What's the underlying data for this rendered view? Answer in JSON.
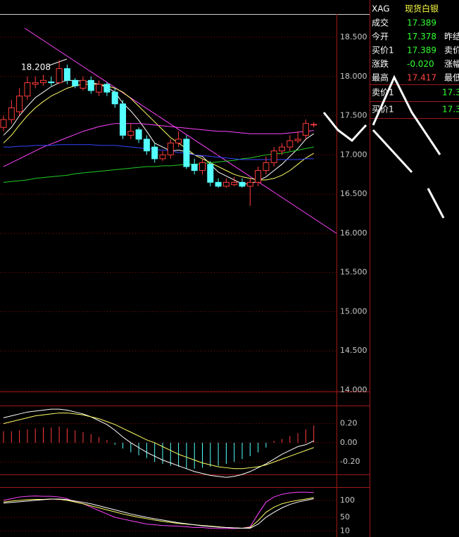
{
  "chart_data": [
    {
      "type": "candlestick",
      "annotation": "18.208",
      "categories": [
        null,
        null,
        null,
        null,
        null,
        null,
        null,
        null,
        null,
        null,
        null,
        null,
        null,
        null,
        null,
        null,
        null,
        null,
        null,
        null,
        null,
        null,
        null,
        null,
        null,
        null,
        null,
        null,
        null,
        null,
        null,
        null,
        null,
        null,
        null,
        null,
        null,
        null,
        null,
        null
      ],
      "open": [
        17.35,
        17.45,
        17.55,
        17.75,
        17.9,
        17.92,
        17.93,
        17.92,
        18.1,
        17.95,
        17.85,
        17.95,
        17.8,
        17.9,
        17.8,
        17.65,
        17.25,
        17.32,
        17.2,
        17.1,
        16.95,
        17.0,
        17.15,
        17.2,
        16.88,
        16.8,
        16.88,
        16.65,
        16.6,
        16.62,
        16.65,
        16.6,
        16.65,
        16.8,
        16.9,
        17.05,
        17.1,
        17.18,
        17.25,
        17.38
      ],
      "high": [
        17.5,
        17.7,
        17.85,
        18.0,
        18.0,
        18.02,
        18.0,
        18.208,
        18.15,
        17.98,
        18.0,
        18.0,
        17.95,
        17.93,
        17.85,
        17.7,
        17.4,
        17.35,
        17.25,
        17.15,
        17.05,
        17.2,
        17.3,
        17.25,
        16.95,
        16.95,
        16.92,
        16.7,
        16.7,
        16.72,
        16.7,
        16.7,
        16.85,
        16.98,
        17.1,
        17.15,
        17.25,
        17.3,
        17.45,
        17.417
      ],
      "low": [
        17.3,
        17.4,
        17.5,
        17.7,
        17.85,
        17.88,
        17.88,
        17.9,
        17.9,
        17.85,
        17.82,
        17.78,
        17.75,
        17.75,
        17.6,
        17.2,
        17.2,
        17.15,
        17.0,
        16.9,
        16.92,
        16.95,
        17.1,
        16.82,
        16.75,
        16.75,
        16.6,
        16.58,
        16.58,
        16.6,
        16.58,
        16.35,
        16.6,
        16.75,
        16.85,
        17.0,
        17.05,
        17.15,
        17.2,
        17.35
      ],
      "close": [
        17.45,
        17.6,
        17.75,
        17.92,
        17.92,
        17.95,
        17.92,
        18.1,
        17.95,
        17.88,
        17.95,
        17.82,
        17.9,
        17.8,
        17.65,
        17.25,
        17.3,
        17.2,
        17.05,
        16.95,
        17.0,
        17.15,
        17.2,
        16.85,
        16.8,
        16.9,
        16.65,
        16.6,
        16.65,
        16.65,
        16.6,
        16.65,
        16.8,
        16.9,
        17.05,
        17.1,
        17.18,
        17.2,
        17.4,
        17.389
      ],
      "up_color": "#ff3c3c",
      "down_color": "#54ffff",
      "series": [
        {
          "color": "#ffffff",
          "values": [
            17.25,
            17.35,
            17.5,
            17.62,
            17.73,
            17.8,
            17.87,
            17.92,
            17.95,
            17.95,
            17.94,
            17.92,
            17.9,
            17.86,
            17.8,
            17.66,
            17.56,
            17.44,
            17.3,
            17.15,
            17.1,
            17.05,
            17.06,
            17.04,
            17.0,
            16.98,
            16.88,
            16.78,
            16.73,
            16.68,
            16.63,
            16.63,
            16.67,
            16.72,
            16.8,
            16.88,
            16.98,
            17.08,
            17.2,
            17.27
          ]
        },
        {
          "color": "#ffff66",
          "values": [
            17.15,
            17.25,
            17.38,
            17.5,
            17.6,
            17.68,
            17.75,
            17.8,
            17.85,
            17.88,
            17.9,
            17.9,
            17.9,
            17.88,
            17.85,
            17.8,
            17.72,
            17.62,
            17.52,
            17.42,
            17.32,
            17.22,
            17.15,
            17.08,
            17.0,
            16.95,
            16.9,
            16.85,
            16.8,
            16.75,
            16.72,
            16.7,
            16.68,
            16.68,
            16.7,
            16.74,
            16.8,
            16.88,
            16.96,
            17.02
          ]
        },
        {
          "color": "#ff44ff",
          "values": [
            16.85,
            16.9,
            16.95,
            17.0,
            17.05,
            17.1,
            17.14,
            17.18,
            17.22,
            17.26,
            17.3,
            17.33,
            17.36,
            17.38,
            17.4,
            17.4,
            17.4,
            17.4,
            17.39,
            17.38,
            17.37,
            17.36,
            17.35,
            17.34,
            17.33,
            17.32,
            17.31,
            17.3,
            17.3,
            17.29,
            17.28,
            17.27,
            17.27,
            17.27,
            17.27,
            17.27,
            17.28,
            17.29,
            17.3,
            17.31
          ]
        },
        {
          "color": "#22cc22",
          "values": [
            16.65,
            16.66,
            16.67,
            16.68,
            16.7,
            16.71,
            16.72,
            16.73,
            16.74,
            16.76,
            16.77,
            16.78,
            16.79,
            16.8,
            16.81,
            16.82,
            16.83,
            16.84,
            16.85,
            16.85,
            16.86,
            16.86,
            16.87,
            16.88,
            16.88,
            16.89,
            16.9,
            16.91,
            16.92,
            16.93,
            16.95,
            16.96,
            16.98,
            17.0,
            17.01,
            17.02,
            17.04,
            17.06,
            17.08,
            17.1
          ]
        },
        {
          "color": "#3344ff",
          "values": [
            17.1,
            17.1,
            17.11,
            17.11,
            17.12,
            17.12,
            17.12,
            17.13,
            17.13,
            17.13,
            17.13,
            17.13,
            17.12,
            17.12,
            17.12,
            17.11,
            17.1,
            17.09,
            17.08,
            17.07,
            17.06,
            17.05,
            17.03,
            17.02,
            17.0,
            16.99,
            16.98,
            16.97,
            16.96,
            16.95,
            16.94,
            16.94,
            16.94,
            16.94,
            16.94,
            16.94,
            16.94,
            16.94,
            16.95,
            16.95
          ]
        }
      ],
      "ylim": [
        14.0,
        18.8
      ],
      "yticks": [
        {
          "value": 18.5,
          "label": "18.500"
        },
        {
          "value": 18.0,
          "label": "18.000"
        },
        {
          "value": 17.5,
          "label": "17.500"
        },
        {
          "value": 17.0,
          "label": "17.000"
        },
        {
          "value": 16.5,
          "label": "16.500"
        },
        {
          "value": 16.0,
          "label": "16.000"
        },
        {
          "value": 15.5,
          "label": "15.500"
        },
        {
          "value": 15.0,
          "label": "15.000"
        },
        {
          "value": 14.5,
          "label": "14.500"
        },
        {
          "value": 14.0,
          "label": "14.000"
        }
      ],
      "grid": true
    },
    {
      "type": "macd",
      "values": [
        0.12,
        0.12,
        0.13,
        0.14,
        0.15,
        0.16,
        0.16,
        0.17,
        0.15,
        0.13,
        0.11,
        0.09,
        0.06,
        0.03,
        -0.02,
        -0.06,
        -0.1,
        -0.13,
        -0.16,
        -0.2,
        -0.22,
        -0.24,
        -0.25,
        -0.27,
        -0.27,
        -0.26,
        -0.25,
        -0.24,
        -0.22,
        -0.2,
        -0.17,
        -0.14,
        -0.1,
        -0.05,
        0.02,
        0.04,
        0.07,
        0.1,
        0.14,
        0.18
      ],
      "up_color": "#ff3c3c",
      "down_color": "#54ffff",
      "series": [
        {
          "color": "#ffffff",
          "values": [
            0.26,
            0.28,
            0.3,
            0.32,
            0.33,
            0.34,
            0.35,
            0.35,
            0.34,
            0.32,
            0.3,
            0.27,
            0.23,
            0.19,
            0.13,
            0.06,
            0.0,
            -0.05,
            -0.1,
            -0.14,
            -0.18,
            -0.21,
            -0.24,
            -0.27,
            -0.3,
            -0.32,
            -0.34,
            -0.35,
            -0.36,
            -0.35,
            -0.33,
            -0.3,
            -0.26,
            -0.22,
            -0.17,
            -0.12,
            -0.08,
            -0.04,
            -0.02,
            0.02
          ]
        },
        {
          "color": "#ffff66",
          "values": [
            0.2,
            0.22,
            0.24,
            0.26,
            0.28,
            0.29,
            0.3,
            0.31,
            0.31,
            0.3,
            0.29,
            0.27,
            0.25,
            0.22,
            0.19,
            0.15,
            0.11,
            0.07,
            0.03,
            0.0,
            -0.04,
            -0.08,
            -0.12,
            -0.15,
            -0.18,
            -0.21,
            -0.23,
            -0.25,
            -0.26,
            -0.27,
            -0.27,
            -0.26,
            -0.25,
            -0.23,
            -0.2,
            -0.17,
            -0.14,
            -0.11,
            -0.08,
            -0.05
          ]
        }
      ],
      "ylim": [
        -0.33,
        0.38
      ],
      "yticks": [
        {
          "value": 0.2,
          "label": "0.20"
        },
        {
          "value": 0,
          "label": "0.00"
        },
        {
          "value": -0.2,
          "label": "-0.20"
        }
      ],
      "grid": true
    },
    {
      "type": "line",
      "series": [
        {
          "color": "#ff44ff",
          "values": [
            100,
            105,
            110,
            112,
            113,
            112,
            112,
            110,
            105,
            95,
            90,
            80,
            70,
            60,
            50,
            45,
            40,
            35,
            30,
            28,
            26,
            25,
            24,
            22,
            20,
            20,
            18,
            17,
            17,
            17,
            18,
            22,
            60,
            95,
            110,
            118,
            122,
            124,
            124,
            123
          ]
        },
        {
          "color": "#ffff66",
          "values": [
            95,
            98,
            100,
            102,
            103,
            103,
            104,
            103,
            100,
            95,
            90,
            84,
            78,
            72,
            66,
            60,
            55,
            50,
            46,
            42,
            38,
            35,
            32,
            30,
            28,
            26,
            24,
            22,
            20,
            19,
            18,
            20,
            40,
            65,
            80,
            90,
            96,
            100,
            104,
            108
          ]
        },
        {
          "color": "#ffffff",
          "values": [
            92,
            94,
            96,
            98,
            100,
            102,
            104,
            104,
            102,
            98,
            94,
            90,
            84,
            78,
            72,
            66,
            60,
            55,
            50,
            46,
            42,
            38,
            34,
            31,
            28,
            25,
            23,
            21,
            20,
            19,
            18,
            18,
            30,
            50,
            65,
            78,
            88,
            95,
            100,
            105
          ]
        }
      ],
      "ylim": [
        -8,
        135
      ],
      "yticks": [
        100,
        50,
        10
      ],
      "grid": true
    }
  ],
  "quote_panel": {
    "symbol": "XAG",
    "name": "现货白银",
    "rows": [
      {
        "label": "成交",
        "value": "17.389",
        "label2": ""
      },
      {
        "label": "今开",
        "value": "17.378",
        "label2": "昨结"
      },
      {
        "label": "买价1",
        "value": "17.389",
        "label2": "卖价"
      },
      {
        "label": "涨跌",
        "value": "-0.020",
        "label2": "涨幅"
      },
      {
        "label": "最高",
        "value": "17.417",
        "label2": "最低"
      }
    ],
    "depth": [
      {
        "label": "卖价1",
        "value": "17.3"
      },
      {
        "label": "买价1",
        "value": "17.3"
      }
    ]
  }
}
